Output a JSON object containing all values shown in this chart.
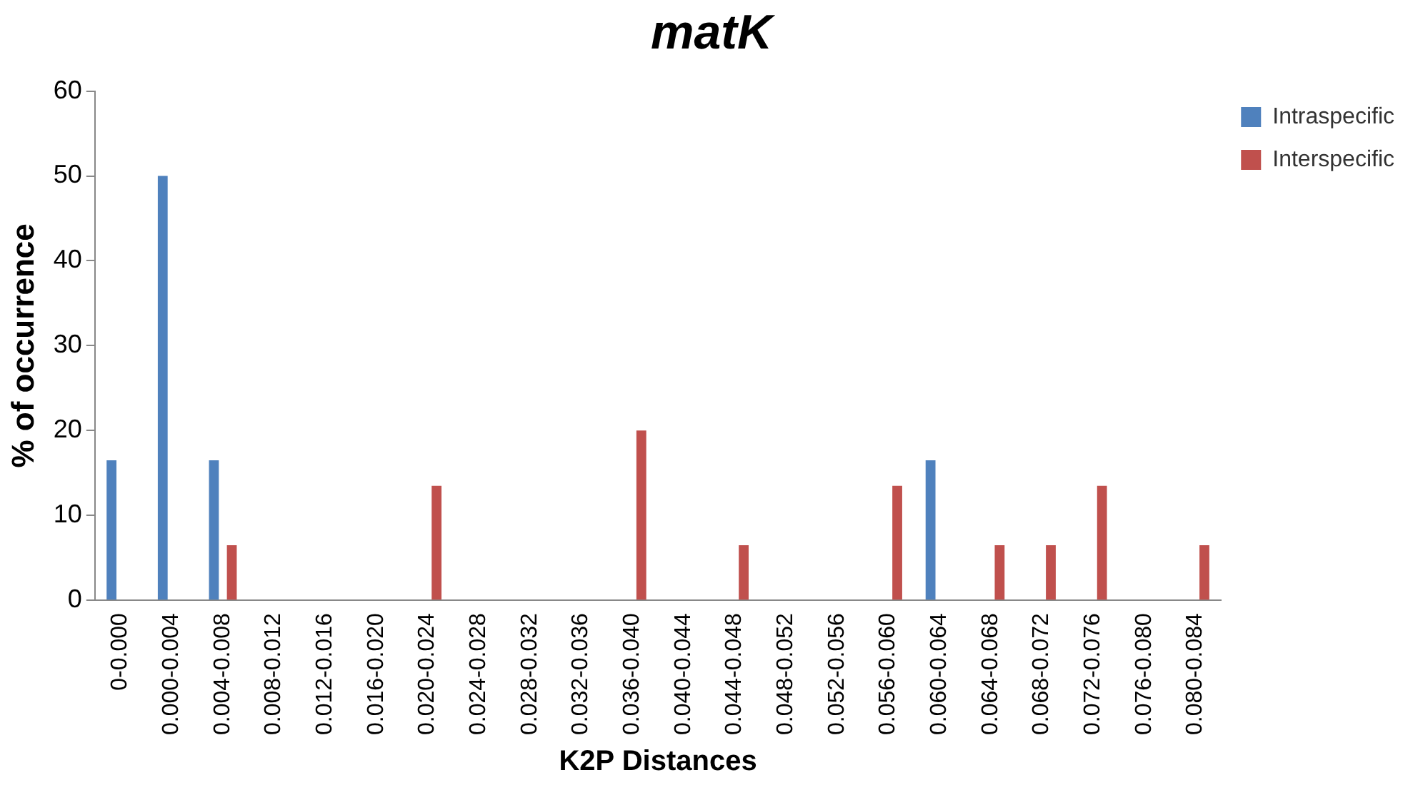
{
  "chart_data": {
    "type": "bar",
    "title": "matK",
    "xlabel": "K2P Distances",
    "ylabel": "% of occurrence",
    "categories": [
      "0-0.000",
      "0.000-0.004",
      "0.004-0.008",
      "0.008-0.012",
      "0.012-0.016",
      "0.016-0.020",
      "0.020-0.024",
      "0.024-0.028",
      "0.028-0.032",
      "0.032-0.036",
      "0.036-0.040",
      "0.040-0.044",
      "0.044-0.048",
      "0.048-0.052",
      "0.052-0.056",
      "0.056-0.060",
      "0.060-0.064",
      "0.064-0.068",
      "0.068-0.072",
      "0.072-0.076",
      "0.076-0.080",
      "0.080-0.084"
    ],
    "series": [
      {
        "name": "Intraspecific",
        "color": "#4f81bd",
        "values": [
          16.5,
          50,
          16.5,
          0,
          0,
          0,
          0,
          0,
          0,
          0,
          0,
          0,
          0,
          0,
          0,
          0,
          16.5,
          0,
          0,
          0,
          0,
          0
        ]
      },
      {
        "name": "Interspecific",
        "color": "#c0504d",
        "values": [
          0,
          0,
          6.5,
          0,
          0,
          0,
          13.5,
          0,
          0,
          0,
          20,
          0,
          6.5,
          0,
          0,
          13.5,
          0,
          6.5,
          6.5,
          13.5,
          0,
          6.5
        ]
      }
    ],
    "ylim": [
      0,
      60
    ],
    "yticks": [
      0,
      10,
      20,
      30,
      40,
      50,
      60
    ],
    "grid": false,
    "legend": "top right"
  }
}
